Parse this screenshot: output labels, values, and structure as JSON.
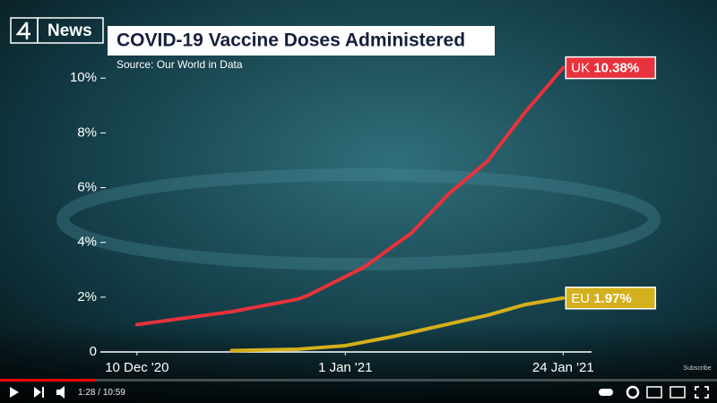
{
  "branding": {
    "channel": "News",
    "watermark": "Subscribe"
  },
  "chart_data": {
    "type": "line",
    "title": "COVID-19 Vaccine Doses Administered",
    "subtitle": "Source: Our World in Data",
    "xlim": [
      "2020-12-05",
      "2021-01-27"
    ],
    "xticks": [
      {
        "value": "2020-12-10",
        "label": "10 Dec '20"
      },
      {
        "value": "2021-01-01",
        "label": "1 Jan '21"
      },
      {
        "value": "2021-01-24",
        "label": "24 Jan '21"
      }
    ],
    "ylim": [
      0,
      10.4
    ],
    "yticks": [
      0,
      {
        "value": 2,
        "label": "2%"
      },
      {
        "value": 4,
        "label": "4%"
      },
      {
        "value": 6,
        "label": "6%"
      },
      {
        "value": 8,
        "label": "8%"
      },
      {
        "value": 10,
        "label": "10%"
      }
    ],
    "series": [
      {
        "name": "UK",
        "color": "#e8323c",
        "x": [
          "2020-12-10",
          "2020-12-20",
          "2020-12-27",
          "2020-12-28",
          "2021-01-03",
          "2021-01-08",
          "2021-01-12",
          "2021-01-16",
          "2021-01-20",
          "2021-01-24"
        ],
        "values": [
          1.0,
          1.47,
          1.93,
          2.06,
          3.1,
          4.35,
          5.8,
          6.96,
          8.76,
          10.38
        ],
        "value_labels": [
          null,
          null,
          null,
          null,
          null,
          null,
          null,
          null,
          null,
          "10.38%"
        ]
      },
      {
        "name": "EU",
        "color": "#d4b01c",
        "x": [
          "2020-12-20",
          "2020-12-27",
          "2021-01-01",
          "2021-01-06",
          "2021-01-11",
          "2021-01-16",
          "2021-01-20",
          "2021-01-24"
        ],
        "values": [
          0.05,
          0.1,
          0.23,
          0.56,
          0.95,
          1.34,
          1.73,
          1.97
        ],
        "value_labels": [
          null,
          null,
          null,
          null,
          null,
          null,
          null,
          "1.97%"
        ]
      }
    ]
  },
  "player": {
    "current_time": "1:28",
    "separator": "/",
    "duration": "10:59"
  }
}
